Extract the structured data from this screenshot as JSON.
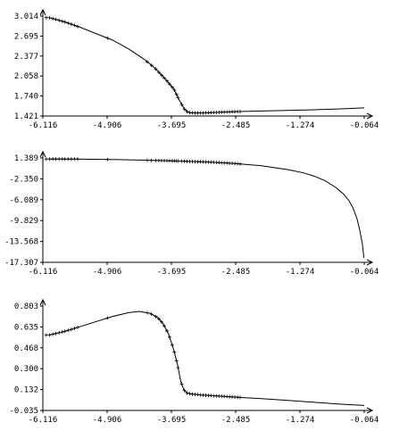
{
  "colors": {
    "line": "#000000",
    "axis": "#000000",
    "background": "#ffffff"
  },
  "chart_data": [
    {
      "type": "line",
      "xlim": [
        -6.116,
        -0.064
      ],
      "ylim": [
        1.421,
        3.014
      ],
      "xticks": [
        "-6.116",
        "-4.906",
        "-3.695",
        "-2.485",
        "-1.274",
        "-0.064"
      ],
      "yticks": [
        "3.014",
        "2.695",
        "2.377",
        "2.058",
        "1.740",
        "1.421"
      ],
      "x": [
        -6.0,
        -5.7,
        -5.4,
        -5.1,
        -4.8,
        -4.5,
        -4.2,
        -4.0,
        -3.8,
        -3.65,
        -3.55,
        -3.45,
        -3.4,
        -3.35,
        -3.25,
        -3.1,
        -2.8,
        -2.485,
        -2.0,
        -1.5,
        -1.0,
        -0.5,
        -0.064
      ],
      "y": [
        2.99,
        2.92,
        2.83,
        2.73,
        2.63,
        2.49,
        2.32,
        2.18,
        2.0,
        1.85,
        1.68,
        1.53,
        1.49,
        1.475,
        1.47,
        1.47,
        1.48,
        1.49,
        1.5,
        1.51,
        1.52,
        1.535,
        1.55
      ],
      "markers_x": [
        -6.05,
        -5.99,
        -5.93,
        -5.87,
        -5.81,
        -5.75,
        -5.7,
        -5.64,
        -5.58,
        -5.52,
        -5.46,
        -4.9,
        -4.15,
        -4.07,
        -3.99,
        -3.93,
        -3.88,
        -3.83,
        -3.78,
        -3.73,
        -3.68,
        -3.64,
        -3.6,
        -3.57,
        -3.5,
        -3.45,
        -3.4,
        -3.35,
        -3.3,
        -3.25,
        -3.2,
        -3.15,
        -3.1,
        -3.05,
        -3.0,
        -2.95,
        -2.9,
        -2.85,
        -2.8,
        -2.75,
        -2.7,
        -2.65,
        -2.6,
        -2.55,
        -2.5,
        -2.45,
        -2.4
      ]
    },
    {
      "type": "line",
      "xlim": [
        -6.116,
        -0.064
      ],
      "ylim": [
        -17.307,
        1.389
      ],
      "xticks": [
        "-6.116",
        "-4.906",
        "-3.695",
        "-2.485",
        "-1.274",
        "-0.064"
      ],
      "yticks": [
        "1.389",
        "-2.350",
        "-6.089",
        "-9.829",
        "-13.568",
        "-17.307"
      ],
      "x": [
        -6.0,
        -5.5,
        -5.0,
        -4.5,
        -4.0,
        -3.5,
        -3.0,
        -2.5,
        -2.0,
        -1.5,
        -1.2,
        -1.0,
        -0.8,
        -0.6,
        -0.45,
        -0.35,
        -0.28,
        -0.2,
        -0.15,
        -0.1,
        -0.07
      ],
      "y": [
        1.2,
        1.18,
        1.13,
        1.05,
        0.95,
        0.82,
        0.65,
        0.4,
        0.0,
        -0.7,
        -1.3,
        -1.9,
        -2.7,
        -3.9,
        -5.1,
        -6.3,
        -7.5,
        -9.5,
        -11.5,
        -14.0,
        -16.5
      ],
      "markers_x": [
        -6.05,
        -5.99,
        -5.93,
        -5.87,
        -5.81,
        -5.75,
        -5.7,
        -5.64,
        -5.58,
        -5.52,
        -5.46,
        -4.9,
        -4.15,
        -4.07,
        -3.99,
        -3.93,
        -3.88,
        -3.83,
        -3.78,
        -3.73,
        -3.68,
        -3.64,
        -3.6,
        -3.57,
        -3.5,
        -3.45,
        -3.4,
        -3.35,
        -3.3,
        -3.25,
        -3.2,
        -3.15,
        -3.1,
        -3.05,
        -3.0,
        -2.95,
        -2.9,
        -2.85,
        -2.8,
        -2.75,
        -2.7,
        -2.65,
        -2.6,
        -2.55,
        -2.5,
        -2.45,
        -2.4
      ]
    },
    {
      "type": "line",
      "xlim": [
        -6.116,
        -0.064
      ],
      "ylim": [
        -0.035,
        0.803
      ],
      "xticks": [
        "-6.116",
        "-4.906",
        "-3.695",
        "-2.485",
        "-1.274",
        "-0.064"
      ],
      "yticks": [
        "0.803",
        "0.635",
        "0.468",
        "0.300",
        "0.132",
        "-0.035"
      ],
      "x": [
        -6.0,
        -5.7,
        -5.4,
        -5.1,
        -4.8,
        -4.5,
        -4.3,
        -4.1,
        -3.95,
        -3.85,
        -3.75,
        -3.65,
        -3.58,
        -3.52,
        -3.46,
        -3.4,
        -3.3,
        -3.1,
        -2.8,
        -2.485,
        -2.0,
        -1.5,
        -1.0,
        -0.5,
        -0.064
      ],
      "y": [
        0.57,
        0.6,
        0.64,
        0.68,
        0.72,
        0.75,
        0.76,
        0.745,
        0.71,
        0.66,
        0.58,
        0.45,
        0.33,
        0.2,
        0.13,
        0.105,
        0.095,
        0.088,
        0.08,
        0.072,
        0.06,
        0.045,
        0.03,
        0.015,
        0.005
      ],
      "markers_x": [
        -6.05,
        -5.99,
        -5.93,
        -5.87,
        -5.81,
        -5.75,
        -5.7,
        -5.64,
        -5.58,
        -5.52,
        -5.46,
        -4.9,
        -4.15,
        -4.07,
        -3.99,
        -3.93,
        -3.88,
        -3.83,
        -3.78,
        -3.73,
        -3.68,
        -3.64,
        -3.6,
        -3.57,
        -3.5,
        -3.45,
        -3.4,
        -3.35,
        -3.3,
        -3.25,
        -3.2,
        -3.15,
        -3.1,
        -3.05,
        -3.0,
        -2.95,
        -2.9,
        -2.85,
        -2.8,
        -2.75,
        -2.7,
        -2.65,
        -2.6,
        -2.55,
        -2.5,
        -2.45,
        -2.4
      ]
    }
  ]
}
